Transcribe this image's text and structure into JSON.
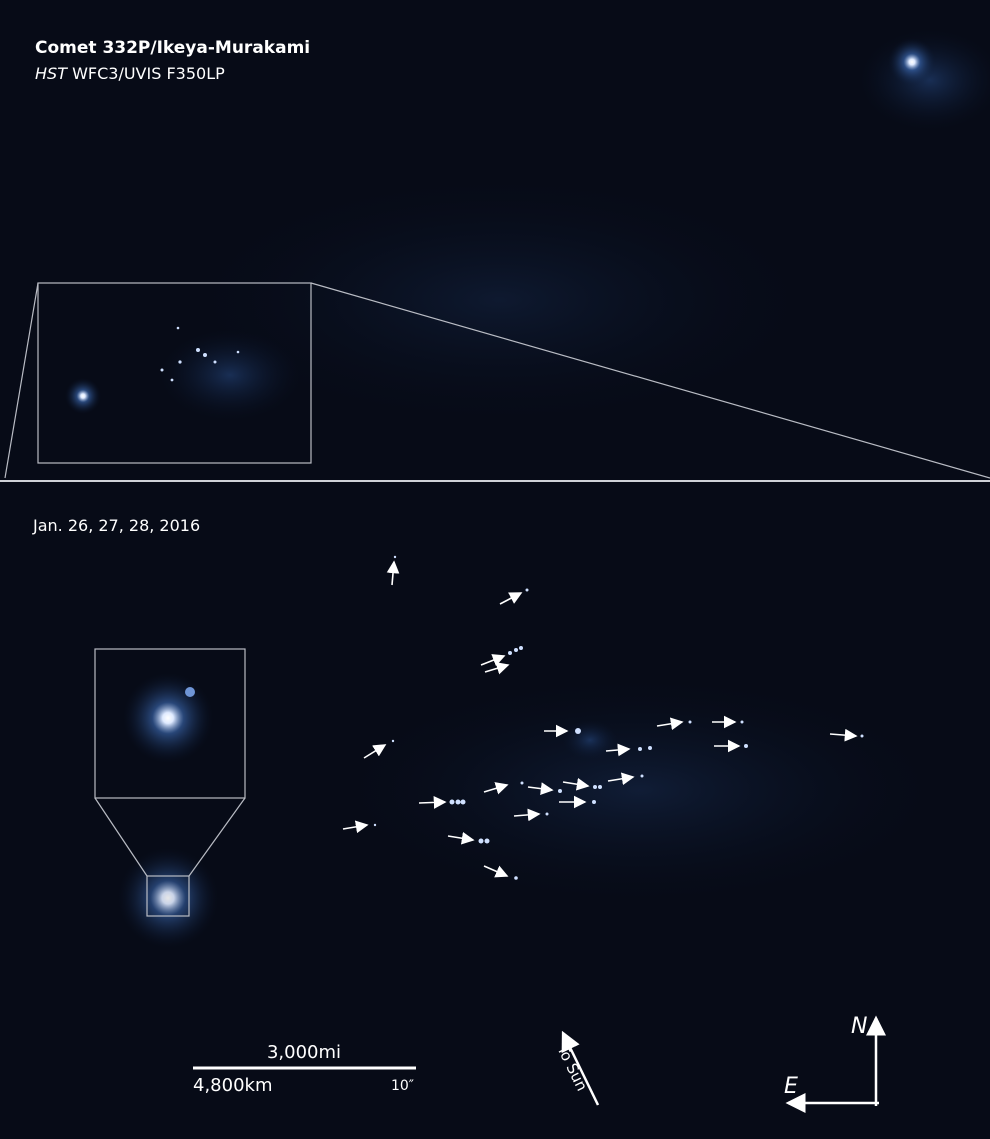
{
  "title": "Comet 332P/Ikeya-Murakami",
  "subtitle": {
    "telescope": "HST",
    "instrument": "WFC3/UVIS F350LP"
  },
  "dates": "Jan. 26, 27, 28, 2016",
  "scale_bar": {
    "miles": "3,000mi",
    "kilometers": "4,800km",
    "arcsec": "10″"
  },
  "sun_direction": "To Sun",
  "compass": {
    "north": "N",
    "east": "E"
  }
}
